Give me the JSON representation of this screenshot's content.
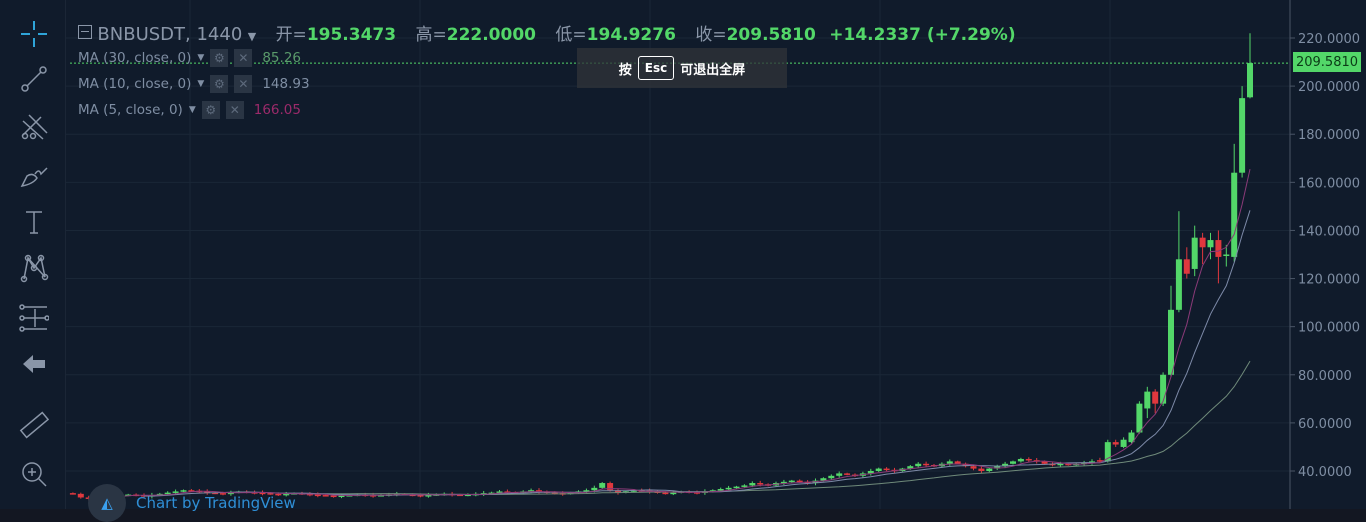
{
  "header": {
    "symbol": "BNBUSDT, 1440",
    "open_label": "开=",
    "open": "195.3473",
    "high_label": "高=",
    "high": "222.0000",
    "low_label": "低=",
    "low": "194.9276",
    "close_label": "收=",
    "close": "209.5810",
    "change": "+14.2337 (+7.29%)"
  },
  "indicators": [
    {
      "label": "MA (30, close, 0)",
      "value": "85.26",
      "color": "#5a9a6b"
    },
    {
      "label": "MA (10, close, 0)",
      "value": "148.93",
      "color": "#7f8ea3"
    },
    {
      "label": "MA (5, close, 0)",
      "value": "166.05",
      "color": "#9b2a6a"
    }
  ],
  "fullscreen_hint": {
    "prefix": "按",
    "key": "Esc",
    "suffix": "可退出全屏"
  },
  "toolbar": [
    "crosshair-icon",
    "trend-line-icon",
    "pitchfork-icon",
    "brush-icon",
    "text-icon",
    "pattern-icon",
    "measure-lines-icon",
    "back-arrow-icon",
    "ruler-icon",
    "zoom-in-icon"
  ],
  "watermark": "Chart by TradingView",
  "last_price": "209.5810",
  "colors": {
    "up": "#53d769",
    "down": "#e0383e",
    "bg": "#101b2b",
    "grid": "#1a2737"
  },
  "chart_data": {
    "type": "candlestick",
    "y_ticks": [
      "220.0000",
      "200.0000",
      "180.0000",
      "160.0000",
      "140.0000",
      "120.0000",
      "100.0000",
      "80.0000",
      "60.0000",
      "40.0000"
    ],
    "ylim": [
      24,
      228
    ],
    "early_closes": [
      30.5,
      29,
      28.5,
      29,
      29.5,
      30,
      29.8,
      30.2,
      30,
      29.5,
      30,
      30.5,
      31,
      31.5,
      32,
      31.8,
      31.5,
      31,
      30.8,
      30.5,
      31,
      31.5,
      31.2,
      31,
      30.8,
      30.5,
      30.2,
      30.5,
      30.8,
      30.5,
      30.2,
      30,
      29.8,
      29.5,
      29.8,
      30,
      30.2,
      30,
      29.8,
      30,
      30.3,
      30.5,
      30.2,
      30,
      29.8,
      30,
      30.3,
      30.5,
      30.2,
      30,
      30.2,
      30.5,
      30.8,
      31,
      31.5,
      31.2,
      31,
      31.5,
      32,
      31.5,
      31,
      30.8,
      30.5,
      31,
      31.5,
      32,
      33,
      35,
      32,
      31,
      31.5,
      32,
      31.8,
      31.5,
      31,
      30.8,
      31,
      31.5,
      31.2,
      31,
      31.5,
      32,
      32.5,
      33,
      33.5,
      34,
      35,
      34.5,
      34,
      35,
      35.5,
      36,
      35.5,
      35,
      36,
      37,
      38,
      39,
      38.5,
      38,
      39,
      40,
      41,
      40.5,
      40,
      41,
      42,
      43,
      42.5,
      42,
      43,
      44,
      43,
      42,
      41,
      40,
      41,
      42,
      43,
      44,
      45,
      44.5,
      44,
      43,
      42.5,
      43,
      42.5,
      43,
      43.5,
      44
    ],
    "recent_ohlc": [
      [
        44.5,
        45.5,
        43.5,
        44
      ],
      [
        44,
        53,
        43.5,
        52
      ],
      [
        52,
        53,
        50,
        51
      ],
      [
        50,
        54,
        49.5,
        53
      ],
      [
        52,
        57,
        51.5,
        56
      ],
      [
        56,
        69,
        55.5,
        68
      ],
      [
        66,
        75,
        62,
        73
      ],
      [
        73,
        74,
        64,
        68
      ],
      [
        68,
        81,
        67,
        80
      ],
      [
        80,
        117,
        79,
        107
      ],
      [
        107,
        148,
        106,
        128
      ],
      [
        128,
        133,
        120,
        122
      ],
      [
        124,
        142,
        121,
        137
      ],
      [
        137,
        139,
        126,
        133
      ],
      [
        133,
        139,
        128,
        136
      ],
      [
        136,
        140,
        118,
        129
      ],
      [
        130,
        134,
        125,
        130
      ],
      [
        129,
        176,
        127,
        164
      ],
      [
        164,
        200,
        162,
        195
      ],
      [
        195.3473,
        222,
        194.9276,
        209.581
      ]
    ]
  }
}
